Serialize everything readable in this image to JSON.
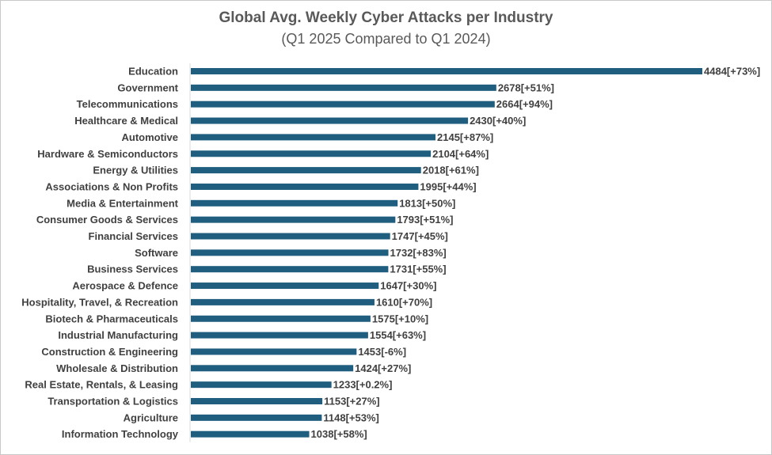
{
  "chart_data": {
    "type": "bar",
    "orientation": "horizontal",
    "title": "Global Avg. Weekly Cyber Attacks per Industry",
    "subtitle": "(Q1 2025 Compared to Q1 2024)",
    "bar_color": "#1f5e7e",
    "categories": [
      "Education",
      "Government",
      "Telecommunications",
      "Healthcare & Medical",
      "Automotive",
      "Hardware & Semiconductors",
      "Energy & Utilities",
      "Associations & Non Profits",
      "Media & Entertainment",
      "Consumer Goods & Services",
      "Financial Services",
      "Software",
      "Business Services",
      "Aerospace & Defence",
      "Hospitality, Travel, & Recreation",
      "Biotech & Pharmaceuticals",
      "Industrial Manufacturing",
      "Construction & Engineering",
      "Wholesale & Distribution",
      "Real Estate, Rentals, & Leasing",
      "Transportation & Logistics",
      "Agriculture",
      "Information Technology"
    ],
    "values": [
      4484,
      2678,
      2664,
      2430,
      2145,
      2104,
      2018,
      1995,
      1813,
      1793,
      1747,
      1732,
      1731,
      1647,
      1610,
      1575,
      1554,
      1453,
      1424,
      1233,
      1153,
      1148,
      1038
    ],
    "changes": [
      "+73%",
      "+51%",
      "+94%",
      "+40%",
      "+87%",
      "+64%",
      "+61%",
      "+44%",
      "+50%",
      "+51%",
      "+45%",
      "+83%",
      "+55%",
      "+30%",
      "+70%",
      "+10%",
      "+63%",
      "-6%",
      "+27%",
      "+0.2%",
      "+27%",
      "+53%",
      "+58%"
    ],
    "xlim": [
      0,
      4484
    ],
    "grid": false,
    "legend": "none"
  }
}
